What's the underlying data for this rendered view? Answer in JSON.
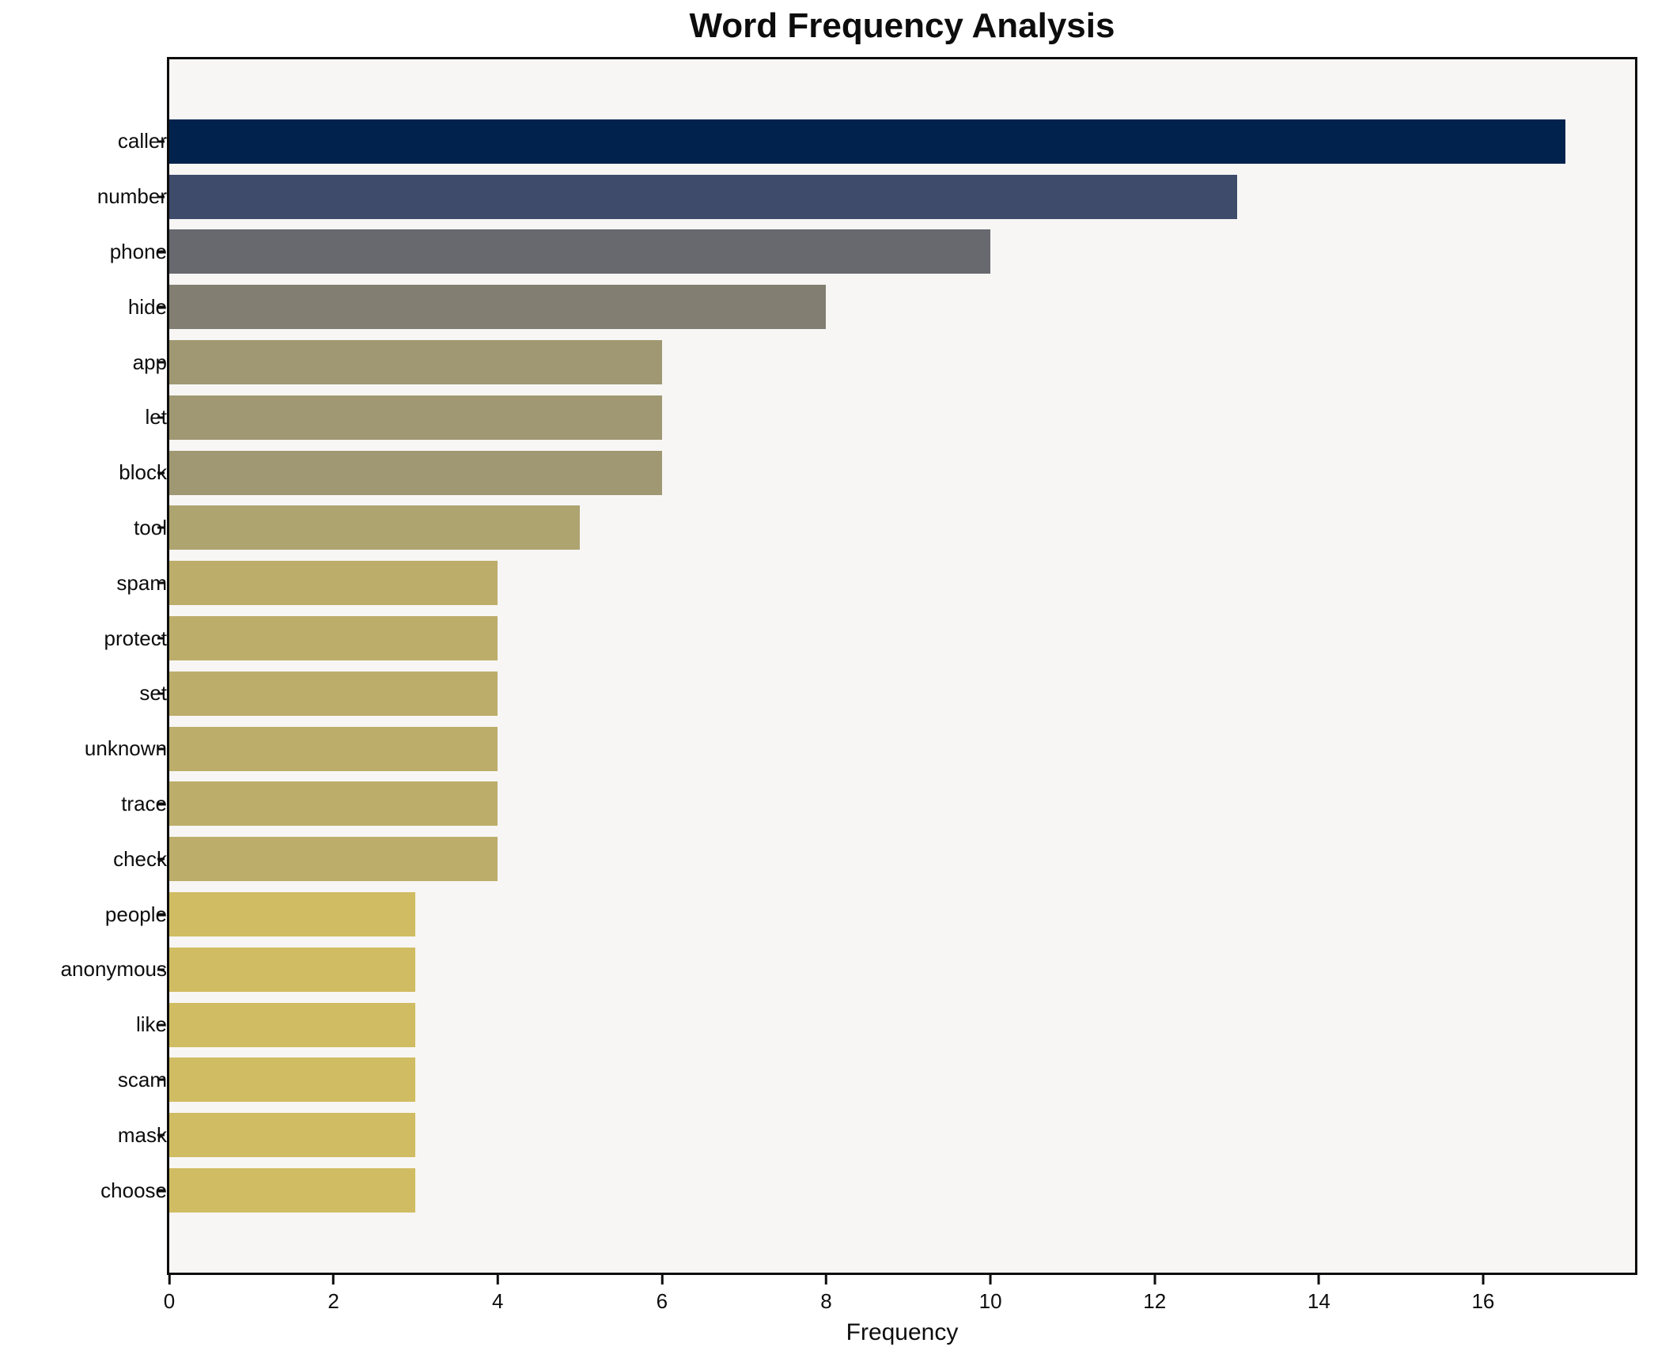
{
  "chart_data": {
    "type": "bar",
    "orientation": "horizontal",
    "title": "Word Frequency Analysis",
    "xlabel": "Frequency",
    "ylabel": "",
    "categories": [
      "caller",
      "number",
      "phone",
      "hide",
      "app",
      "let",
      "block",
      "tool",
      "spam",
      "protect",
      "set",
      "unknown",
      "trace",
      "check",
      "people",
      "anonymous",
      "like",
      "scam",
      "mask",
      "choose"
    ],
    "values": [
      17,
      13,
      10,
      8,
      6,
      6,
      6,
      5,
      4,
      4,
      4,
      4,
      4,
      4,
      3,
      3,
      3,
      3,
      3,
      3
    ],
    "bar_colors": [
      "#02224e",
      "#3f4b6b",
      "#67696f",
      "#827f72",
      "#9f9872",
      "#9f9872",
      "#9f9872",
      "#aea470",
      "#bcad6b",
      "#bcad6b",
      "#bcad6b",
      "#bcad6b",
      "#bcad6b",
      "#bcad6b",
      "#d0bc62",
      "#d0bc62",
      "#d0bc62",
      "#d0bc62",
      "#d0bc62",
      "#d0bc62"
    ],
    "xlim": [
      0,
      17.85
    ],
    "xticks": [
      0,
      2,
      4,
      6,
      8,
      10,
      12,
      14,
      16
    ],
    "grid": "off",
    "legend": "none",
    "plot_background": "#f7f6f5",
    "figure_background": "#ffffff",
    "spine_color": "#0d0d0d"
  }
}
